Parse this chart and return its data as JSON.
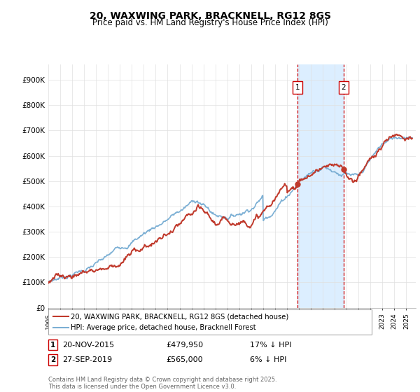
{
  "title": "20, WAXWING PARK, BRACKNELL, RG12 8GS",
  "subtitle": "Price paid vs. HM Land Registry's House Price Index (HPI)",
  "yticks": [
    0,
    100000,
    200000,
    300000,
    400000,
    500000,
    600000,
    700000,
    800000,
    900000
  ],
  "ytick_labels": [
    "£0",
    "£100K",
    "£200K",
    "£300K",
    "£400K",
    "£500K",
    "£600K",
    "£700K",
    "£800K",
    "£900K"
  ],
  "ylim": [
    0,
    960000
  ],
  "xlim_start": 1995.0,
  "xlim_end": 2025.8,
  "hpi_color": "#7bafd4",
  "price_color": "#c0392b",
  "sale1_x": 2015.9,
  "sale1_y": 479950,
  "sale2_x": 2019.75,
  "sale2_y": 565000,
  "sale1_date": "20-NOV-2015",
  "sale1_price": "£479,950",
  "sale1_hpi_text": "17% ↓ HPI",
  "sale2_date": "27-SEP-2019",
  "sale2_price": "£565,000",
  "sale2_hpi_text": "6% ↓ HPI",
  "legend_line1": "20, WAXWING PARK, BRACKNELL, RG12 8GS (detached house)",
  "legend_line2": "HPI: Average price, detached house, Bracknell Forest",
  "footnote": "Contains HM Land Registry data © Crown copyright and database right 2025.\nThis data is licensed under the Open Government Licence v3.0.",
  "background_color": "#ffffff",
  "grid_color": "#e0e0e0",
  "shaded_color": "#dceeff",
  "marker_color": "#c0392b",
  "vline_color": "#cc0000"
}
